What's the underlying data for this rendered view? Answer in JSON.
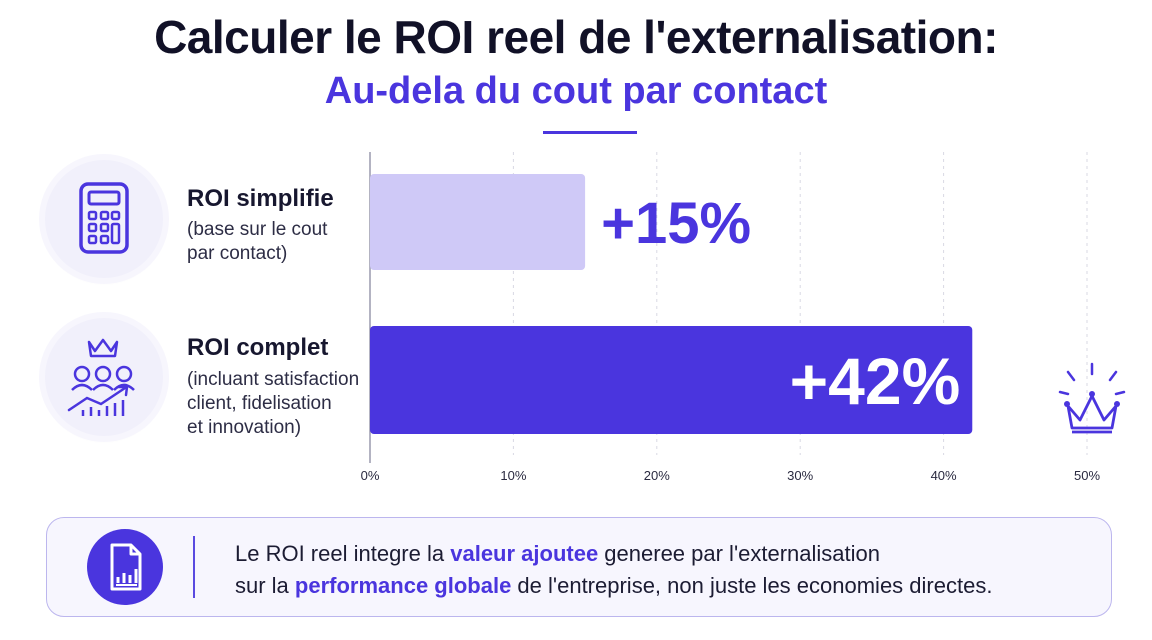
{
  "header": {
    "title": "Calculer le ROI reel de l'externalisation:",
    "subtitle": "Au-dela du cout par contact"
  },
  "rows": [
    {
      "label": "ROI simplifie",
      "desc_lines": [
        "(base sur le cout",
        "par contact)"
      ],
      "icon": "calculator-icon"
    },
    {
      "label": "ROI complet",
      "desc_lines": [
        "(incluant satisfaction",
        "client, fidelisation",
        "et innovation)"
      ],
      "icon": "team-growth-crown-icon"
    }
  ],
  "chart_data": {
    "type": "bar",
    "orientation": "horizontal",
    "categories": [
      "ROI simplifie",
      "ROI complet"
    ],
    "values": [
      15,
      42
    ],
    "value_labels": [
      "+15%",
      "+42%"
    ],
    "xlim": [
      0,
      50
    ],
    "xticks": [
      "0%",
      "10%",
      "20%",
      "30%",
      "40%",
      "50%"
    ],
    "colors": [
      "#cfc9f7",
      "#4a35de"
    ],
    "grid": "vertical dashed"
  },
  "callout": {
    "icon": "report-chart-icon",
    "line1_a": "Le ROI reel integre la ",
    "line1_hl": "valeur ajoutee",
    "line1_b": " generee par l'externalisation",
    "line2_a": "sur la ",
    "line2_hl": "performance globale",
    "line2_b": " de l'entreprise, non juste les economies directes."
  },
  "colors": {
    "accent": "#4a35de",
    "accent_light": "#cfc9f7",
    "title": "#111127"
  }
}
